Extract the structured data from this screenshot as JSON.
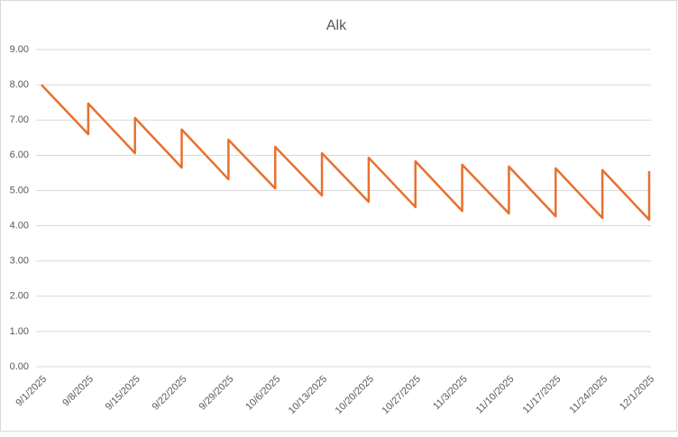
{
  "chart_data": {
    "type": "line",
    "title": "Alk",
    "x": [
      "9/1/2025",
      "9/8/2025",
      "9/8/2025",
      "9/15/2025",
      "9/15/2025",
      "9/22/2025",
      "9/22/2025",
      "9/29/2025",
      "9/29/2025",
      "10/6/2025",
      "10/6/2025",
      "10/13/2025",
      "10/13/2025",
      "10/20/2025",
      "10/20/2025",
      "10/27/2025",
      "10/27/2025",
      "11/3/2025",
      "11/3/2025",
      "11/10/2025",
      "11/10/2025",
      "11/17/2025",
      "11/17/2025",
      "11/24/2025",
      "11/24/2025",
      "12/1/2025",
      "12/1/2025"
    ],
    "series": [
      {
        "name": "Alk",
        "color": "#e8702f",
        "values": [
          8.0,
          6.6,
          7.47,
          6.06,
          7.06,
          5.65,
          6.73,
          5.32,
          6.44,
          5.06,
          6.24,
          4.86,
          6.06,
          4.68,
          5.93,
          4.53,
          5.83,
          4.42,
          5.73,
          4.35,
          5.68,
          4.27,
          5.63,
          4.22,
          5.58,
          4.17,
          5.55
        ]
      }
    ],
    "xlim": [
      "9/1/2025",
      "12/1/2025"
    ],
    "xticks": [
      "9/1/2025",
      "9/8/2025",
      "9/15/2025",
      "9/22/2025",
      "9/29/2025",
      "10/6/2025",
      "10/13/2025",
      "10/20/2025",
      "10/27/2025",
      "11/3/2025",
      "11/10/2025",
      "11/17/2025",
      "11/24/2025",
      "12/1/2025"
    ],
    "ylim": [
      0,
      9
    ],
    "yticks": [
      {
        "value": 0,
        "label": "0.00"
      },
      {
        "value": 1,
        "label": "1.00"
      },
      {
        "value": 2,
        "label": "2.00"
      },
      {
        "value": 3,
        "label": "3.00"
      },
      {
        "value": 4,
        "label": "4.00"
      },
      {
        "value": 5,
        "label": "5.00"
      },
      {
        "value": 6,
        "label": "6.00"
      },
      {
        "value": 7,
        "label": "7.00"
      },
      {
        "value": 8,
        "label": "8.00"
      },
      {
        "value": 9,
        "label": "9.00"
      }
    ],
    "grid": true
  }
}
